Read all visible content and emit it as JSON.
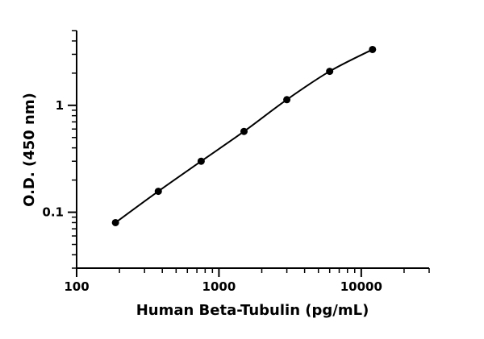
{
  "chart_data": {
    "type": "scatter",
    "xlabel": "Human Beta-Tubulin (pg/mL)",
    "ylabel": "O.D. (450 nm)",
    "xscale": "log",
    "yscale": "log",
    "xlim": [
      100,
      30000
    ],
    "ylim": [
      0.03,
      5
    ],
    "x_ticks": [
      {
        "value": 100,
        "label": "100"
      },
      {
        "value": 1000,
        "label": "1000"
      },
      {
        "value": 10000,
        "label": "10000"
      }
    ],
    "y_ticks": [
      {
        "value": 0.1,
        "label": "0.1"
      },
      {
        "value": 1,
        "label": "1"
      }
    ],
    "grid": false,
    "fit_line": true,
    "x": [
      187.5,
      375,
      750,
      1500,
      3000,
      6000,
      12000
    ],
    "y": [
      0.08,
      0.157,
      0.3,
      0.57,
      1.13,
      2.08,
      3.33
    ]
  }
}
